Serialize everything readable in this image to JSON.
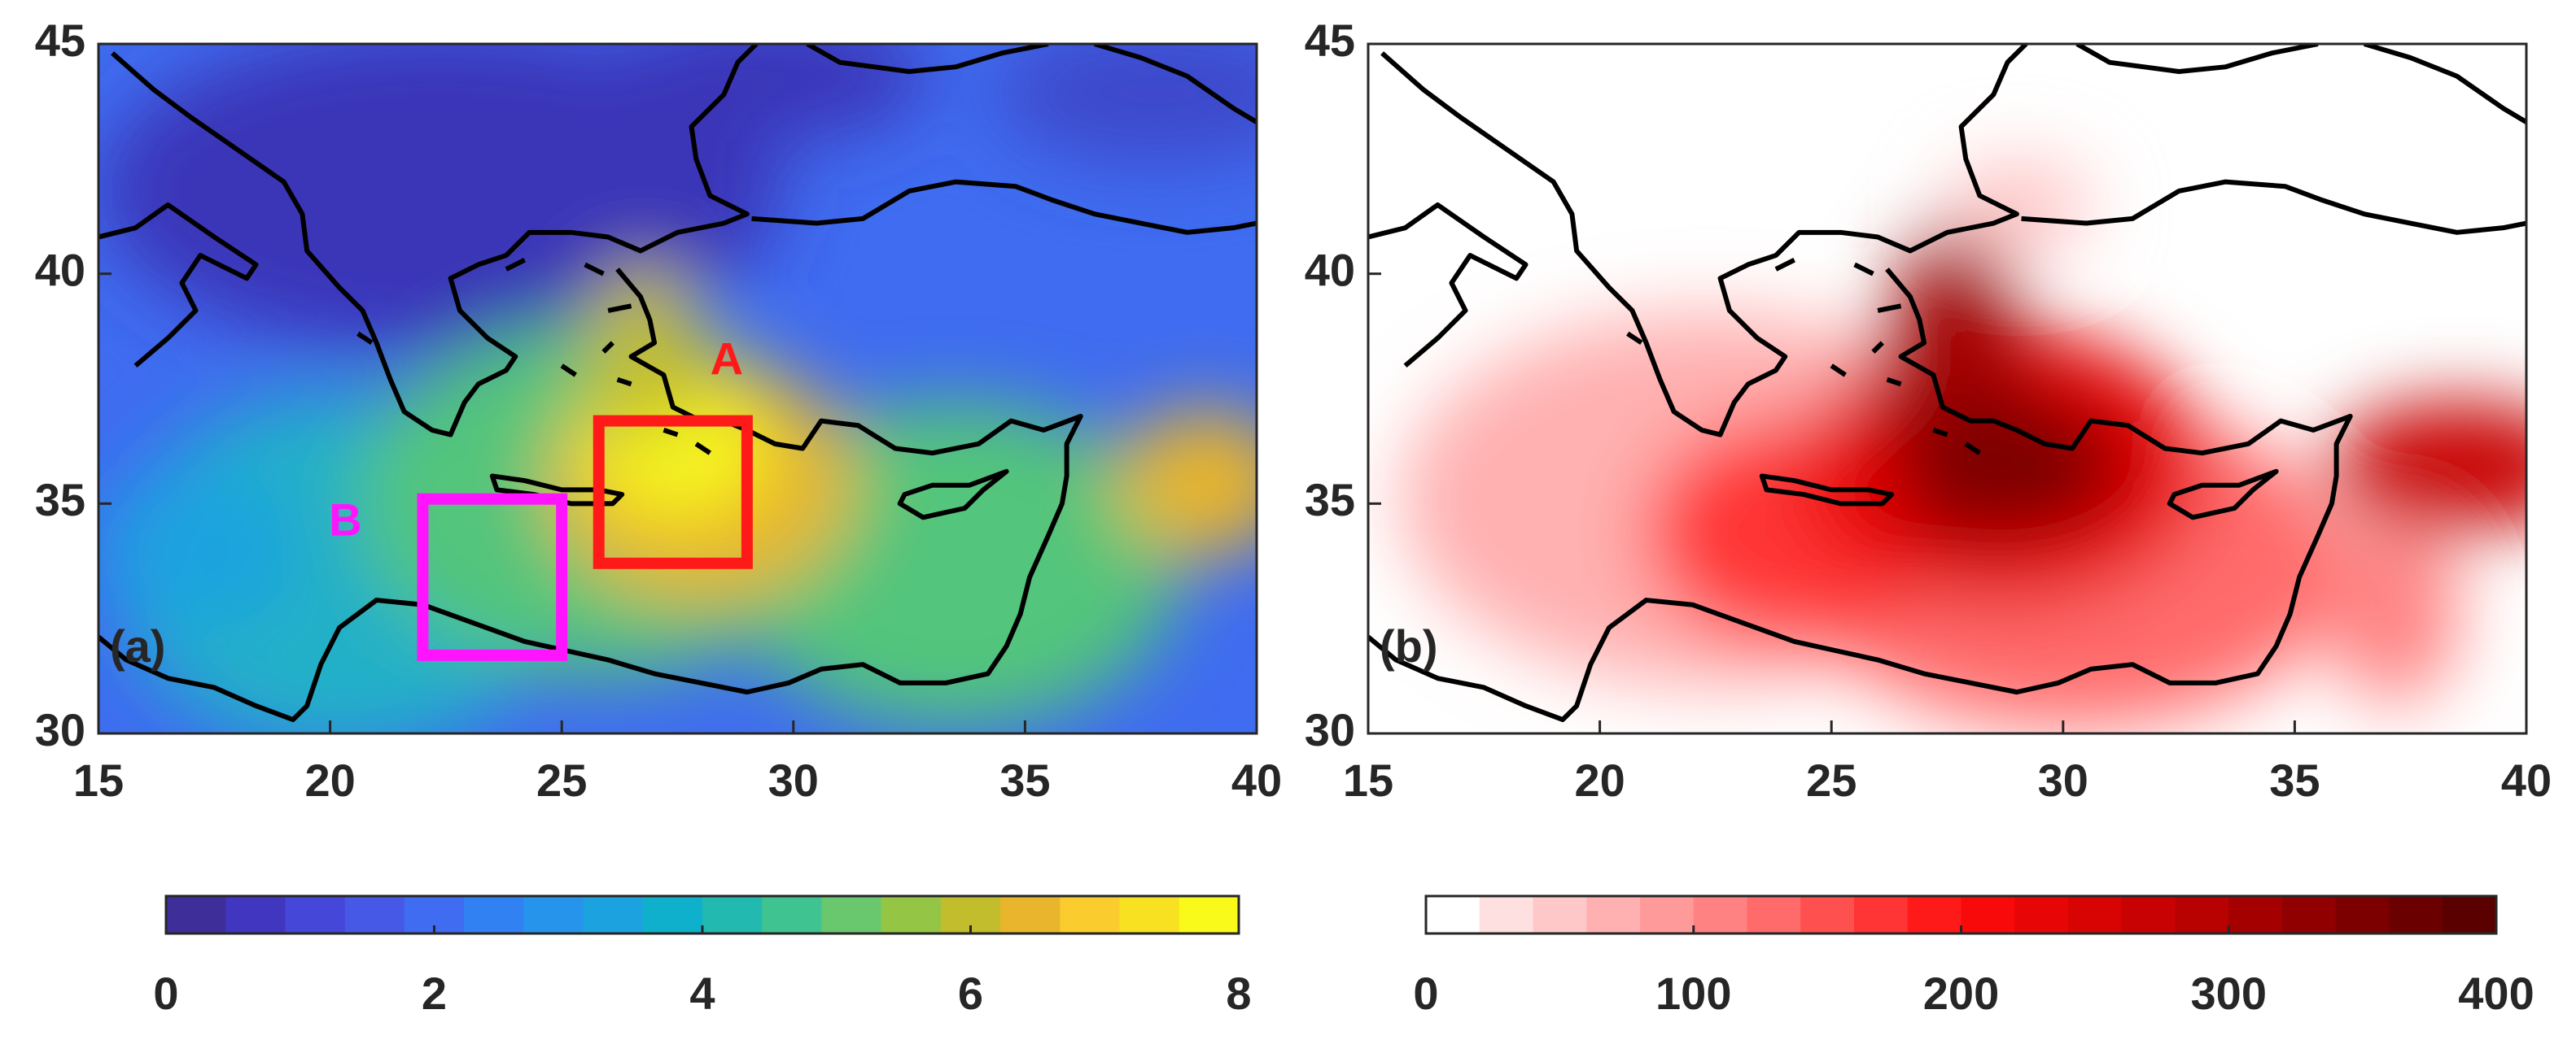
{
  "chart_data": [
    {
      "type": "map",
      "panel_label": "(a)",
      "xlim": [
        15,
        40
      ],
      "ylim": [
        30,
        45
      ],
      "xticks": [
        15,
        20,
        25,
        30,
        35,
        40
      ],
      "yticks": [
        30,
        35,
        40,
        45
      ],
      "boxes": [
        {
          "label": "A",
          "color": "#ff1a1a",
          "x": [
            25.8,
            29
          ],
          "y": [
            33.7,
            36.8
          ]
        },
        {
          "label": "B",
          "color": "#ff14ff",
          "x": [
            22,
            25
          ],
          "y": [
            31.7,
            35.1
          ]
        }
      ],
      "colorbar": {
        "lim": [
          0,
          8
        ],
        "ticks": [
          0,
          2,
          4,
          6,
          8
        ],
        "colors": [
          "#3e2e9a",
          "#4136c0",
          "#4547d8",
          "#4659e6",
          "#3f6cf0",
          "#3281f3",
          "#2794ec",
          "#1ca3df",
          "#0fb0cc",
          "#22bab0",
          "#3fc390",
          "#69c86e",
          "#95c545",
          "#c2bd2c",
          "#e8b52c",
          "#fbcc2e",
          "#f8e121",
          "#f9f91a"
        ]
      }
    },
    {
      "type": "map",
      "panel_label": "(b)",
      "xlim": [
        15,
        40
      ],
      "ylim": [
        30,
        45
      ],
      "xticks": [
        15,
        20,
        25,
        30,
        35,
        40
      ],
      "yticks": [
        30,
        35,
        40,
        45
      ],
      "colorbar": {
        "lim": [
          0,
          400
        ],
        "ticks": [
          0,
          100,
          200,
          300,
          400
        ],
        "colors": [
          "#ffffff",
          "#ffe0e0",
          "#ffc8c8",
          "#ffb0b0",
          "#ff9a9a",
          "#ff8282",
          "#ff6a6a",
          "#ff5050",
          "#ff3434",
          "#ff1a1a",
          "#f80a0a",
          "#e80505",
          "#d80303",
          "#c80202",
          "#b80101",
          "#a40000",
          "#900000",
          "#7c0000",
          "#6a0000",
          "#5a0000"
        ]
      }
    }
  ]
}
